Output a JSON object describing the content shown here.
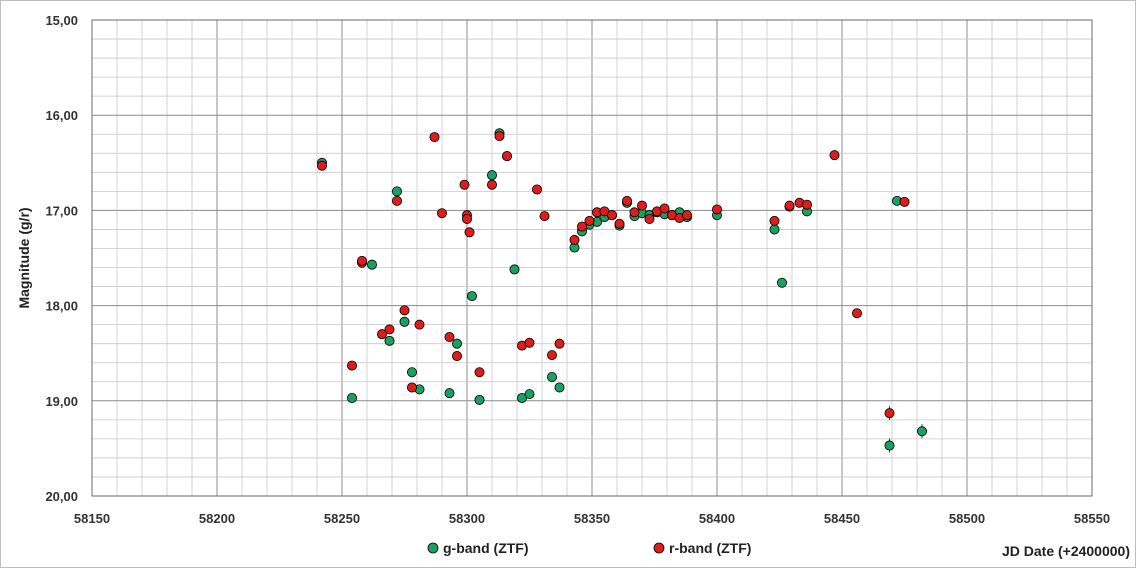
{
  "chart_data": {
    "type": "scatter",
    "xlabel": "JD Date (+2400000)",
    "ylabel": "Magnitude (g/r)",
    "xlim": [
      58150,
      58550
    ],
    "ylim": [
      15.0,
      20.0
    ],
    "y_inverted": true,
    "x_ticks": [
      "58150",
      "58200",
      "58250",
      "58300",
      "58350",
      "58400",
      "58450",
      "58500",
      "58550"
    ],
    "y_ticks": [
      "15,00",
      "16,00",
      "17,00",
      "18,00",
      "19,00",
      "20,00"
    ],
    "grid": true,
    "legend": "bottom-center",
    "series": [
      {
        "name": "g-band (ZTF)",
        "color": "#1aa060",
        "points": [
          [
            58242,
            16.5
          ],
          [
            58254,
            18.97
          ],
          [
            58262,
            17.57
          ],
          [
            58269,
            18.37
          ],
          [
            58272,
            16.8
          ],
          [
            58275,
            18.17
          ],
          [
            58278,
            18.7
          ],
          [
            58281,
            18.88
          ],
          [
            58293,
            18.92
          ],
          [
            58296,
            18.4
          ],
          [
            58302,
            17.9
          ],
          [
            58305,
            18.99
          ],
          [
            58310,
            16.63
          ],
          [
            58313,
            16.19
          ],
          [
            58316,
            16.43
          ],
          [
            58319,
            17.62
          ],
          [
            58322,
            18.97
          ],
          [
            58325,
            18.93
          ],
          [
            58334,
            18.75
          ],
          [
            58337,
            18.86
          ],
          [
            58343,
            17.39
          ],
          [
            58346,
            17.22
          ],
          [
            58349,
            17.15
          ],
          [
            58352,
            17.12
          ],
          [
            58355,
            17.07
          ],
          [
            58358,
            17.05
          ],
          [
            58361,
            17.16
          ],
          [
            58364,
            16.92
          ],
          [
            58367,
            17.06
          ],
          [
            58370,
            17.03
          ],
          [
            58373,
            17.05
          ],
          [
            58376,
            17.02
          ],
          [
            58379,
            17.04
          ],
          [
            58382,
            17.05
          ],
          [
            58385,
            17.02
          ],
          [
            58388,
            17.07
          ],
          [
            58400,
            17.05
          ],
          [
            58423,
            17.2
          ],
          [
            58426,
            17.76
          ],
          [
            58429,
            16.96
          ],
          [
            58436,
            17.01
          ],
          [
            58469,
            19.47
          ],
          [
            58472,
            16.9
          ],
          [
            58482,
            19.32
          ]
        ]
      },
      {
        "name": "r-band (ZTF)",
        "color": "#dd1c1c",
        "points": [
          [
            58242,
            16.53
          ],
          [
            58254,
            18.63
          ],
          [
            58258,
            17.55
          ],
          [
            58258,
            17.53
          ],
          [
            58266,
            18.3
          ],
          [
            58269,
            18.25
          ],
          [
            58272,
            16.9
          ],
          [
            58275,
            18.05
          ],
          [
            58278,
            18.86
          ],
          [
            58281,
            18.2
          ],
          [
            58287,
            16.23
          ],
          [
            58290,
            17.03
          ],
          [
            58293,
            18.33
          ],
          [
            58296,
            18.53
          ],
          [
            58299,
            16.73
          ],
          [
            58300,
            17.05
          ],
          [
            58300,
            17.09
          ],
          [
            58301,
            17.23
          ],
          [
            58305,
            18.7
          ],
          [
            58310,
            16.73
          ],
          [
            58313,
            16.22
          ],
          [
            58316,
            16.43
          ],
          [
            58322,
            18.42
          ],
          [
            58325,
            18.39
          ],
          [
            58328,
            16.78
          ],
          [
            58331,
            17.06
          ],
          [
            58334,
            18.52
          ],
          [
            58337,
            18.4
          ],
          [
            58343,
            17.31
          ],
          [
            58346,
            17.17
          ],
          [
            58349,
            17.11
          ],
          [
            58352,
            17.02
          ],
          [
            58355,
            17.01
          ],
          [
            58358,
            17.05
          ],
          [
            58361,
            17.14
          ],
          [
            58364,
            16.9
          ],
          [
            58367,
            17.02
          ],
          [
            58370,
            16.95
          ],
          [
            58373,
            17.09
          ],
          [
            58376,
            17.01
          ],
          [
            58379,
            16.98
          ],
          [
            58382,
            17.05
          ],
          [
            58385,
            17.08
          ],
          [
            58388,
            17.05
          ],
          [
            58400,
            16.99
          ],
          [
            58423,
            17.11
          ],
          [
            58429,
            16.95
          ],
          [
            58433,
            16.92
          ],
          [
            58436,
            16.94
          ],
          [
            58447,
            16.42
          ],
          [
            58456,
            18.08
          ],
          [
            58469,
            19.13
          ],
          [
            58475,
            16.91
          ]
        ]
      }
    ]
  }
}
